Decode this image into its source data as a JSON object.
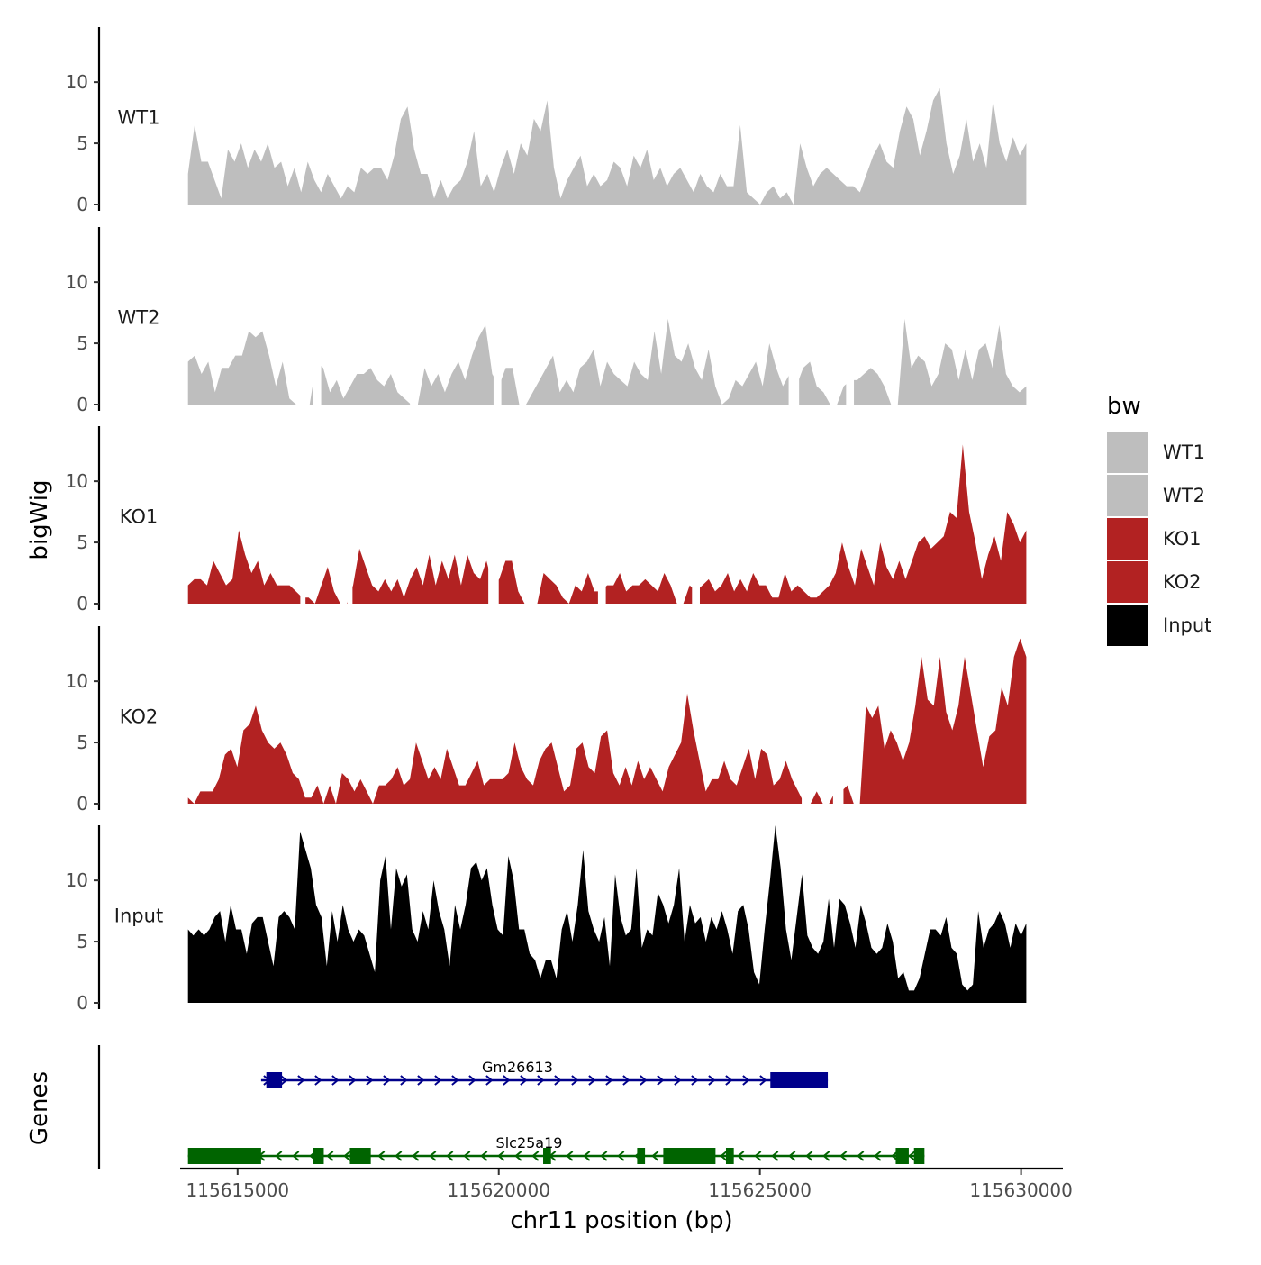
{
  "chart_data": {
    "type": "area",
    "chromosome": "chr11",
    "xlabel": "chr11 position (bp)",
    "ylabel": "bigWig",
    "genes_label": "Genes",
    "xlim": [
      115613900,
      115630800
    ],
    "data_range": [
      115614050,
      115630100
    ],
    "ylim": [
      0,
      14.5
    ],
    "y_ticks": [
      0,
      5,
      10
    ],
    "x_ticks": [
      115615000,
      115620000,
      115625000,
      115630000
    ],
    "x_tick_labels": [
      "115615000",
      "115620000",
      "115625000",
      "115630000"
    ],
    "legend": {
      "title": "bw",
      "position": "right",
      "entries": [
        {
          "label": "WT1",
          "color": "#bebebe"
        },
        {
          "label": "WT2",
          "color": "#bebebe"
        },
        {
          "label": "KO1",
          "color": "#b22222"
        },
        {
          "label": "KO2",
          "color": "#b22222"
        },
        {
          "label": "Input",
          "color": "#000000"
        }
      ]
    },
    "series": [
      {
        "name": "WT1",
        "color": "#bebebe",
        "values": [
          2.5,
          6.5,
          3.5,
          3.5,
          2,
          0.5,
          4.5,
          3.5,
          5,
          3,
          4.5,
          3.5,
          5,
          3,
          3.5,
          1.5,
          3,
          1,
          3.5,
          2,
          1,
          2.5,
          1.5,
          0.5,
          1.5,
          1,
          3,
          2.5,
          3,
          3,
          2,
          4,
          7,
          8,
          4.5,
          2.5,
          2.5,
          0.5,
          2,
          0.5,
          1.5,
          2,
          3.5,
          6,
          1.5,
          2.5,
          1,
          3,
          4.5,
          2.5,
          5,
          4,
          7,
          6,
          8.5,
          3,
          0.5,
          2,
          3,
          4,
          1.5,
          2.5,
          1.5,
          2,
          3.5,
          3,
          1.5,
          4,
          3,
          4.5,
          2,
          3,
          1.5,
          2.5,
          3,
          2,
          1,
          2.5,
          1.5,
          1,
          2.5,
          1.5,
          1.5,
          6.5,
          1,
          0.5,
          0,
          1,
          1.5,
          0.5,
          1,
          0,
          5,
          3,
          1.5,
          2.5,
          3,
          2.5,
          2,
          1.5,
          1.5,
          1,
          2.5,
          4,
          5,
          3.5,
          3,
          6,
          8,
          7,
          4,
          6,
          8.5,
          9.5,
          5,
          2.5,
          4,
          7,
          3.5,
          5,
          3,
          8.5,
          5,
          3.5,
          5.5,
          4,
          5
        ],
        "gaps": []
      },
      {
        "name": "WT2",
        "color": "#bebebe",
        "values": [
          3.5,
          4,
          2.5,
          3.5,
          1,
          3,
          3,
          4,
          4,
          6,
          5.5,
          6,
          4,
          1.5,
          3.5,
          0.5,
          0,
          0,
          0,
          3.5,
          3,
          1,
          2,
          0.5,
          1.5,
          2.5,
          2.5,
          3,
          2,
          1.5,
          2.5,
          1,
          0.5,
          0,
          0,
          3,
          1.5,
          2.5,
          1,
          2.5,
          3.5,
          2,
          4,
          5.5,
          6.5,
          2.5,
          1.5,
          3,
          3,
          0,
          0,
          1,
          2,
          3,
          4,
          1,
          2,
          1,
          3,
          3.5,
          4.5,
          1.5,
          3.5,
          2.5,
          2,
          1.5,
          3.5,
          2.5,
          2,
          6,
          2.5,
          7,
          4,
          3.5,
          5,
          3,
          2,
          4.5,
          1.5,
          0,
          0.5,
          2,
          1.5,
          2.5,
          3.5,
          1.5,
          5,
          3,
          1.5,
          2.5,
          1.5,
          3,
          3.5,
          1.5,
          1,
          0,
          0,
          1.5,
          2,
          2,
          2.5,
          3,
          2.5,
          1.5,
          0,
          0,
          7,
          3,
          4,
          3.5,
          1.5,
          2.5,
          5,
          4.5,
          2,
          4.5,
          2,
          4.5,
          5,
          3,
          6.5,
          2.5,
          1.5,
          1,
          1.5
        ],
        "gaps": [
          [
            115616450,
            115616600
          ],
          [
            115618300,
            115618450
          ],
          [
            115619900,
            115620050
          ],
          [
            115625550,
            115625750
          ],
          [
            115626650,
            115626800
          ]
        ]
      },
      {
        "name": "KO1",
        "color": "#b22222",
        "values": [
          1.5,
          2,
          2,
          1.5,
          3.5,
          2.5,
          1.5,
          2,
          6,
          4,
          2.5,
          3.5,
          1.5,
          2.5,
          1.5,
          1.5,
          1.5,
          1,
          0.5,
          0.5,
          0,
          1.5,
          3,
          1,
          0,
          0,
          1.5,
          4.5,
          3,
          1.5,
          1,
          2,
          1,
          2,
          0.5,
          2,
          3,
          1.5,
          4,
          1.5,
          3.5,
          2,
          4,
          1.5,
          4,
          2.5,
          2,
          3.5,
          1.5,
          2,
          3.5,
          3.5,
          1,
          0,
          0,
          0,
          2.5,
          2,
          1.5,
          0.5,
          0,
          1.5,
          1,
          2.5,
          1,
          1,
          1.5,
          1.5,
          2.5,
          1,
          1.5,
          1.5,
          2,
          1.5,
          1,
          2.5,
          1.5,
          0,
          0,
          1.5,
          1,
          1.5,
          2,
          1,
          1.5,
          2.5,
          1,
          2,
          1,
          2.5,
          1.5,
          1.5,
          0.5,
          0.5,
          2.5,
          1,
          1.5,
          1,
          0.5,
          0.5,
          1,
          1.5,
          2.5,
          5,
          3,
          1.5,
          4.5,
          3,
          1.5,
          5,
          3,
          2,
          3.5,
          2,
          3.5,
          5,
          5.5,
          4.5,
          5,
          5.5,
          7.5,
          7,
          13,
          7.5,
          5,
          2,
          4,
          5.5,
          3.5,
          7.5,
          6.5,
          5,
          6
        ],
        "gaps": [
          [
            115614050,
            115614050
          ],
          [
            115616200,
            115616300
          ],
          [
            115617100,
            115617200
          ],
          [
            115619800,
            115620000
          ],
          [
            115621900,
            115622050
          ],
          [
            115623700,
            115623850
          ]
        ]
      },
      {
        "name": "KO2",
        "color": "#b22222",
        "values": [
          0.5,
          0,
          1,
          1,
          1,
          2,
          4,
          4.5,
          3,
          6,
          6.5,
          8,
          6,
          5,
          4.5,
          5,
          4,
          2.5,
          2,
          0.5,
          0.5,
          1.5,
          0,
          1.5,
          0,
          2.5,
          2,
          1,
          2,
          1,
          0,
          1.5,
          1.5,
          2,
          3,
          1.5,
          2,
          5,
          3.5,
          2,
          3,
          2,
          4.5,
          3,
          1.5,
          1.5,
          2.5,
          3.5,
          1.5,
          2,
          2,
          2,
          2.5,
          5,
          3,
          2,
          1.5,
          3.5,
          4.5,
          5,
          3,
          1,
          1.5,
          4.5,
          5,
          3,
          2.5,
          5.5,
          6,
          2.5,
          1.5,
          3,
          1.5,
          3.5,
          2,
          3,
          2,
          1,
          3,
          4,
          5,
          9,
          6,
          3.5,
          1,
          2,
          2,
          3.5,
          2,
          1.5,
          3,
          4.5,
          2,
          4.5,
          4,
          1.5,
          2,
          3.5,
          2,
          1,
          0,
          0,
          1,
          0,
          0,
          1,
          1,
          1.5,
          0,
          0,
          8,
          7,
          8,
          4.5,
          6,
          5,
          3.5,
          5,
          8,
          12,
          8.5,
          8,
          12,
          7.5,
          6,
          8,
          12,
          9,
          6,
          3,
          5.5,
          6,
          9.5,
          8,
          12,
          13.5,
          12
        ],
        "gaps": [
          [
            115625800,
            115625900
          ],
          [
            115626400,
            115626600
          ]
        ]
      },
      {
        "name": "Input",
        "color": "#000000",
        "values": [
          6,
          5.5,
          6,
          5.5,
          6,
          7,
          7.5,
          5,
          8,
          6,
          6,
          4,
          6.5,
          7,
          7,
          5,
          3,
          7,
          7.5,
          7,
          6,
          14,
          12.5,
          11,
          8,
          7,
          3,
          7.5,
          5,
          8,
          6,
          5,
          6,
          5.5,
          4,
          2.5,
          10,
          12,
          6,
          11,
          9.5,
          10.5,
          6,
          5,
          7.5,
          6,
          10,
          7.5,
          6,
          3,
          8,
          6,
          8,
          11,
          11.5,
          10,
          11,
          8,
          6,
          5.5,
          12,
          10,
          6,
          6,
          4,
          3.5,
          2,
          3.5,
          3.5,
          2,
          6,
          7.5,
          5,
          8,
          12.5,
          7.5,
          6,
          5,
          7,
          3,
          10.5,
          7,
          5.5,
          6,
          11,
          4.5,
          6,
          5.5,
          9,
          8,
          6.5,
          8,
          11,
          5,
          8,
          6.5,
          7,
          5,
          7,
          6,
          7.5,
          6,
          4,
          7.5,
          8,
          6,
          2.5,
          1.5,
          6,
          10,
          14.5,
          11,
          6,
          3.5,
          7,
          10.5,
          5.5,
          4.5,
          4,
          5,
          8.5,
          4.5,
          8.5,
          8,
          6.5,
          4.5,
          8,
          6.5,
          4.5,
          4,
          4.5,
          6.5,
          5,
          2,
          2.5,
          1,
          1,
          2,
          4,
          6,
          6,
          5.5,
          7,
          4.5,
          4,
          1.5,
          1,
          1.5,
          7.5,
          4.5,
          6,
          6.5,
          7.5,
          6.5,
          4.5,
          6.5,
          5.5,
          6.5
        ],
        "gaps": []
      }
    ],
    "genes": [
      {
        "name": "Gm26613",
        "color": "#00008b",
        "strand": "+",
        "start": 115615450,
        "end": 115626300,
        "exons": [
          [
            115615550,
            115615850
          ],
          [
            115625200,
            115626300
          ]
        ]
      },
      {
        "name": "Slc25a19",
        "color": "#006400",
        "strand": "-",
        "start": 115614050,
        "end": 115628150,
        "exons": [
          [
            115614050,
            115615450
          ],
          [
            115616450,
            115616650
          ],
          [
            115617150,
            115617550
          ],
          [
            115620850,
            115621000
          ],
          [
            115622650,
            115622800
          ],
          [
            115623150,
            115624150
          ],
          [
            115624350,
            115624500
          ],
          [
            115627600,
            115627850
          ],
          [
            115627950,
            115628150
          ]
        ]
      }
    ]
  }
}
